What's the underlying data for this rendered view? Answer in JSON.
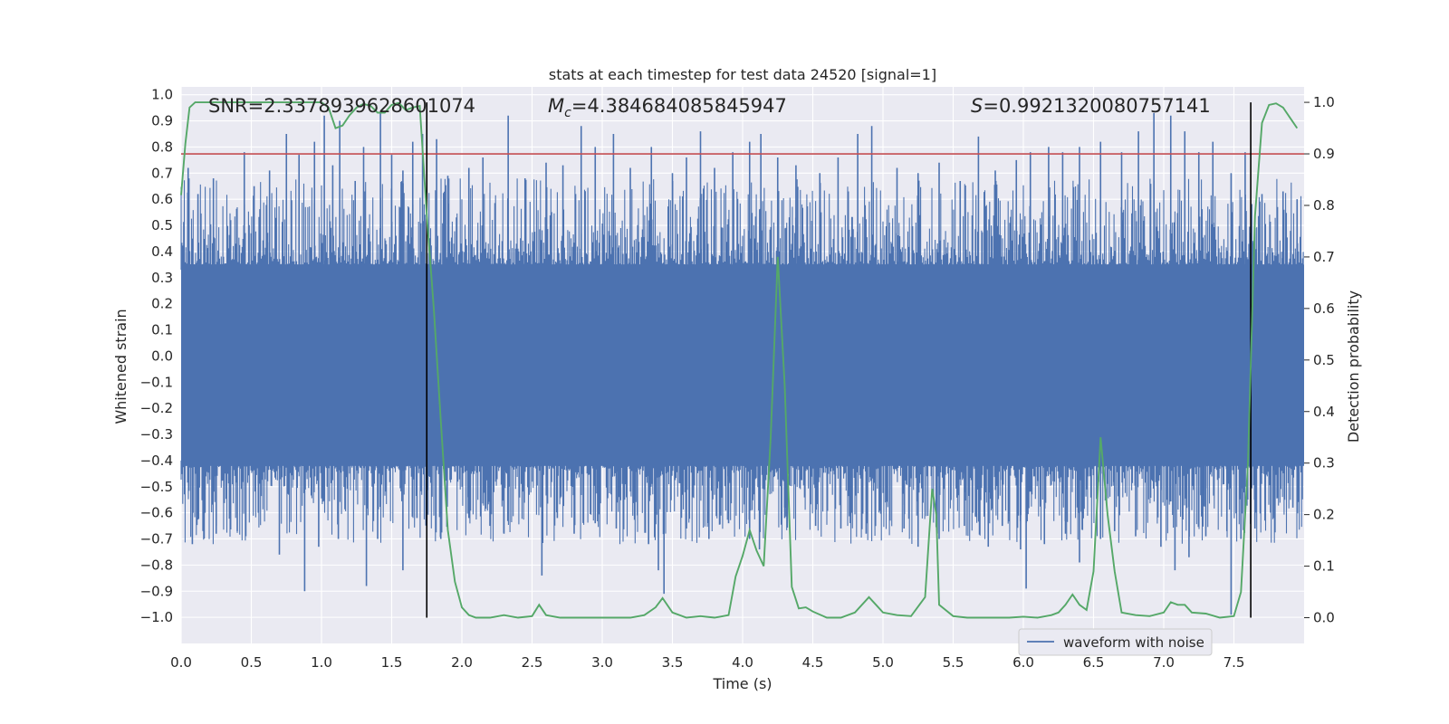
{
  "chart_data": {
    "type": "line",
    "title": "stats at each timestep for test data 24520 [signal=1]",
    "xlabel": "Time (s)",
    "ylabel": "Whitened strain",
    "ylabel_right": "Detection probability",
    "xlim": [
      0,
      8
    ],
    "ylim": [
      -1.1,
      1.03
    ],
    "ylim_right": [
      -0.05,
      1.03
    ],
    "x_ticks": [
      0.0,
      0.5,
      1.0,
      1.5,
      2.0,
      2.5,
      3.0,
      3.5,
      4.0,
      4.5,
      5.0,
      5.5,
      6.0,
      6.5,
      7.0,
      7.5
    ],
    "x_tick_labels": [
      "0.0",
      "0.5",
      "1.0",
      "1.5",
      "2.0",
      "2.5",
      "3.0",
      "3.5",
      "4.0",
      "4.5",
      "5.0",
      "5.5",
      "6.0",
      "6.5",
      "7.0",
      "7.5"
    ],
    "y_ticks": [
      -1.0,
      -0.9,
      -0.8,
      -0.7,
      -0.6,
      -0.5,
      -0.4,
      -0.3,
      -0.2,
      -0.1,
      0.0,
      0.1,
      0.2,
      0.3,
      0.4,
      0.5,
      0.6,
      0.7,
      0.8,
      0.9,
      1.0
    ],
    "y_tick_labels": [
      "−1.0",
      "−0.9",
      "−0.8",
      "−0.7",
      "−0.6",
      "−0.5",
      "−0.4",
      "−0.3",
      "−0.2",
      "−0.1",
      "0.0",
      "0.1",
      "0.2",
      "0.3",
      "0.4",
      "0.5",
      "0.6",
      "0.7",
      "0.8",
      "0.9",
      "1.0"
    ],
    "y_right_ticks": [
      0.0,
      0.1,
      0.2,
      0.3,
      0.4,
      0.5,
      0.6,
      0.7,
      0.8,
      0.9,
      1.0
    ],
    "y_right_tick_labels": [
      "0.0",
      "0.1",
      "0.2",
      "0.3",
      "0.4",
      "0.5",
      "0.6",
      "0.7",
      "0.8",
      "0.9",
      "1.0"
    ],
    "threshold": 0.9,
    "vertical_markers": [
      1.75,
      7.62
    ],
    "waveform": {
      "name": "waveform with noise",
      "color": "#4c72b0",
      "dense_band": [
        -0.42,
        0.35
      ],
      "spikes": [
        {
          "x": 0.05,
          "y": 0.72
        },
        {
          "x": 0.12,
          "y": 0.62
        },
        {
          "x": 0.23,
          "y": 0.68
        },
        {
          "x": 0.45,
          "y": 0.78
        },
        {
          "x": 0.52,
          "y": 0.65
        },
        {
          "x": 0.63,
          "y": 0.71
        },
        {
          "x": 0.75,
          "y": 0.85
        },
        {
          "x": 0.84,
          "y": 0.77
        },
        {
          "x": 0.95,
          "y": 0.82
        },
        {
          "x": 1.02,
          "y": 0.92
        },
        {
          "x": 1.08,
          "y": 0.73
        },
        {
          "x": 1.13,
          "y": 0.9
        },
        {
          "x": 1.24,
          "y": 0.67
        },
        {
          "x": 1.3,
          "y": 0.8
        },
        {
          "x": 1.42,
          "y": 0.93
        },
        {
          "x": 1.5,
          "y": 0.77
        },
        {
          "x": 1.58,
          "y": 0.71
        },
        {
          "x": 1.65,
          "y": 0.82
        },
        {
          "x": 1.72,
          "y": 0.85
        },
        {
          "x": 1.82,
          "y": 0.83
        },
        {
          "x": 1.9,
          "y": 0.69
        },
        {
          "x": 2.05,
          "y": 0.72
        },
        {
          "x": 2.15,
          "y": 0.76
        },
        {
          "x": 2.33,
          "y": 0.92
        },
        {
          "x": 2.45,
          "y": 0.68
        },
        {
          "x": 2.6,
          "y": 0.74
        },
        {
          "x": 2.72,
          "y": 0.73
        },
        {
          "x": 2.85,
          "y": 0.88
        },
        {
          "x": 2.95,
          "y": 0.8
        },
        {
          "x": 3.08,
          "y": 0.85
        },
        {
          "x": 3.2,
          "y": 0.72
        },
        {
          "x": 3.35,
          "y": 0.8
        },
        {
          "x": 3.5,
          "y": 0.7
        },
        {
          "x": 3.6,
          "y": 0.76
        },
        {
          "x": 3.7,
          "y": 0.86
        },
        {
          "x": 3.8,
          "y": 0.72
        },
        {
          "x": 3.93,
          "y": 0.78
        },
        {
          "x": 4.05,
          "y": 0.82
        },
        {
          "x": 4.13,
          "y": 0.85
        },
        {
          "x": 4.25,
          "y": 0.76
        },
        {
          "x": 4.38,
          "y": 0.73
        },
        {
          "x": 4.55,
          "y": 0.7
        },
        {
          "x": 4.68,
          "y": 0.76
        },
        {
          "x": 4.82,
          "y": 0.85
        },
        {
          "x": 4.92,
          "y": 0.88
        },
        {
          "x": 5.1,
          "y": 0.72
        },
        {
          "x": 5.25,
          "y": 0.7
        },
        {
          "x": 5.4,
          "y": 0.74
        },
        {
          "x": 5.55,
          "y": 0.67
        },
        {
          "x": 5.68,
          "y": 0.84
        },
        {
          "x": 5.8,
          "y": 0.71
        },
        {
          "x": 5.95,
          "y": 0.75
        },
        {
          "x": 6.05,
          "y": 0.78
        },
        {
          "x": 6.18,
          "y": 0.8
        },
        {
          "x": 6.28,
          "y": 0.78
        },
        {
          "x": 6.4,
          "y": 0.8
        },
        {
          "x": 6.55,
          "y": 0.82
        },
        {
          "x": 6.7,
          "y": 0.78
        },
        {
          "x": 6.82,
          "y": 0.86
        },
        {
          "x": 6.93,
          "y": 0.93
        },
        {
          "x": 7.05,
          "y": 0.92
        },
        {
          "x": 7.15,
          "y": 0.86
        },
        {
          "x": 7.25,
          "y": 0.78
        },
        {
          "x": 7.35,
          "y": 0.82
        },
        {
          "x": 7.48,
          "y": 0.7
        },
        {
          "x": 7.58,
          "y": 0.78
        },
        {
          "x": 7.7,
          "y": 0.62
        },
        {
          "x": 7.85,
          "y": 0.63
        },
        {
          "x": 7.95,
          "y": 0.6
        },
        {
          "x": 0.08,
          "y": -0.72
        },
        {
          "x": 0.17,
          "y": -0.6
        },
        {
          "x": 0.25,
          "y": -0.68
        },
        {
          "x": 0.4,
          "y": -0.67
        },
        {
          "x": 0.55,
          "y": -0.6
        },
        {
          "x": 0.7,
          "y": -0.76
        },
        {
          "x": 0.88,
          "y": -0.9
        },
        {
          "x": 0.98,
          "y": -0.73
        },
        {
          "x": 1.12,
          "y": -0.7
        },
        {
          "x": 1.32,
          "y": -0.88
        },
        {
          "x": 1.4,
          "y": -0.7
        },
        {
          "x": 1.58,
          "y": -0.82
        },
        {
          "x": 1.68,
          "y": -0.62
        },
        {
          "x": 1.85,
          "y": -0.7
        },
        {
          "x": 2.05,
          "y": -0.62
        },
        {
          "x": 2.2,
          "y": -0.65
        },
        {
          "x": 2.3,
          "y": -0.68
        },
        {
          "x": 2.57,
          "y": -0.84
        },
        {
          "x": 2.68,
          "y": -0.62
        },
        {
          "x": 2.8,
          "y": -0.68
        },
        {
          "x": 2.95,
          "y": -0.64
        },
        {
          "x": 3.1,
          "y": -0.66
        },
        {
          "x": 3.25,
          "y": -0.61
        },
        {
          "x": 3.33,
          "y": -0.72
        },
        {
          "x": 3.4,
          "y": -0.82
        },
        {
          "x": 3.44,
          "y": -0.91
        },
        {
          "x": 3.6,
          "y": -0.66
        },
        {
          "x": 3.76,
          "y": -0.7
        },
        {
          "x": 3.9,
          "y": -0.64
        },
        {
          "x": 4.05,
          "y": -0.7
        },
        {
          "x": 4.12,
          "y": -0.74
        },
        {
          "x": 4.3,
          "y": -0.62
        },
        {
          "x": 4.52,
          "y": -0.65
        },
        {
          "x": 4.7,
          "y": -0.66
        },
        {
          "x": 4.88,
          "y": -0.68
        },
        {
          "x": 5.05,
          "y": -0.63
        },
        {
          "x": 5.15,
          "y": -0.66
        },
        {
          "x": 5.25,
          "y": -0.73
        },
        {
          "x": 5.4,
          "y": -0.7
        },
        {
          "x": 5.58,
          "y": -0.65
        },
        {
          "x": 5.75,
          "y": -0.73
        },
        {
          "x": 5.85,
          "y": -0.65
        },
        {
          "x": 5.98,
          "y": -0.74
        },
        {
          "x": 6.02,
          "y": -0.89
        },
        {
          "x": 6.15,
          "y": -0.72
        },
        {
          "x": 6.3,
          "y": -0.68
        },
        {
          "x": 6.4,
          "y": -0.79
        },
        {
          "x": 6.55,
          "y": -0.7
        },
        {
          "x": 6.65,
          "y": -0.67
        },
        {
          "x": 6.8,
          "y": -0.69
        },
        {
          "x": 6.98,
          "y": -0.73
        },
        {
          "x": 7.08,
          "y": -0.82
        },
        {
          "x": 7.18,
          "y": -0.77
        },
        {
          "x": 7.3,
          "y": -0.69
        },
        {
          "x": 7.45,
          "y": -0.67
        },
        {
          "x": 7.48,
          "y": -0.99
        },
        {
          "x": 7.55,
          "y": -0.7
        },
        {
          "x": 7.65,
          "y": -0.66
        },
        {
          "x": 7.78,
          "y": -0.62
        },
        {
          "x": 7.92,
          "y": -0.58
        }
      ]
    },
    "probability": {
      "color": "#55a868",
      "x": [
        0.0,
        0.03,
        0.06,
        0.1,
        0.15,
        0.2,
        0.3,
        0.4,
        0.5,
        0.6,
        0.7,
        0.8,
        0.9,
        1.0,
        1.05,
        1.1,
        1.15,
        1.2,
        1.25,
        1.3,
        1.35,
        1.4,
        1.45,
        1.5,
        1.55,
        1.6,
        1.65,
        1.7,
        1.75,
        1.8,
        1.85,
        1.9,
        1.95,
        2.0,
        2.05,
        2.1,
        2.2,
        2.3,
        2.4,
        2.5,
        2.55,
        2.6,
        2.7,
        2.8,
        2.9,
        3.0,
        3.1,
        3.2,
        3.3,
        3.38,
        3.43,
        3.5,
        3.6,
        3.7,
        3.8,
        3.9,
        3.95,
        4.0,
        4.05,
        4.1,
        4.15,
        4.2,
        4.25,
        4.3,
        4.35,
        4.4,
        4.45,
        4.5,
        4.6,
        4.7,
        4.8,
        4.9,
        4.95,
        5.0,
        5.1,
        5.2,
        5.3,
        5.35,
        5.38,
        5.4,
        5.5,
        5.6,
        5.7,
        5.8,
        5.9,
        6.0,
        6.1,
        6.2,
        6.25,
        6.3,
        6.35,
        6.4,
        6.45,
        6.5,
        6.55,
        6.6,
        6.65,
        6.7,
        6.8,
        6.9,
        7.0,
        7.05,
        7.1,
        7.15,
        7.2,
        7.3,
        7.4,
        7.5,
        7.55,
        7.6,
        7.65,
        7.7,
        7.75,
        7.8,
        7.85,
        7.9,
        7.95
      ],
      "y": [
        0.82,
        0.92,
        0.99,
        1.0,
        1.0,
        1.0,
        1.0,
        1.0,
        1.0,
        1.0,
        1.0,
        1.0,
        1.0,
        1.0,
        0.99,
        0.95,
        0.955,
        0.975,
        0.99,
        0.997,
        0.993,
        0.98,
        0.98,
        0.995,
        0.999,
        0.985,
        0.99,
        0.993,
        0.78,
        0.6,
        0.38,
        0.17,
        0.07,
        0.02,
        0.005,
        0.0,
        0.0,
        0.005,
        0.0,
        0.003,
        0.025,
        0.005,
        0.0,
        0.0,
        0.0,
        0.0,
        0.0,
        0.0,
        0.005,
        0.02,
        0.038,
        0.01,
        0.0,
        0.003,
        0.0,
        0.005,
        0.08,
        0.12,
        0.17,
        0.13,
        0.1,
        0.35,
        0.7,
        0.45,
        0.06,
        0.018,
        0.02,
        0.012,
        0.0,
        0.0,
        0.01,
        0.04,
        0.025,
        0.01,
        0.005,
        0.003,
        0.04,
        0.25,
        0.2,
        0.025,
        0.003,
        0.0,
        0.0,
        0.0,
        0.0,
        0.002,
        0.0,
        0.005,
        0.01,
        0.025,
        0.045,
        0.025,
        0.015,
        0.09,
        0.35,
        0.2,
        0.09,
        0.01,
        0.005,
        0.003,
        0.01,
        0.03,
        0.025,
        0.025,
        0.01,
        0.008,
        0.0,
        0.003,
        0.05,
        0.3,
        0.78,
        0.96,
        0.995,
        0.998,
        0.99,
        0.97,
        0.95
      ]
    },
    "annotations": {
      "snr_text": "SNR=2.3378939628601074",
      "mc_symbol": "M",
      "mc_sub": "c",
      "mc_value": "=4.384684085845947",
      "s_symbol": "S",
      "s_value": "=0.9921320080757141"
    },
    "legend": {
      "label": "waveform with noise",
      "position": "lower-right"
    }
  }
}
